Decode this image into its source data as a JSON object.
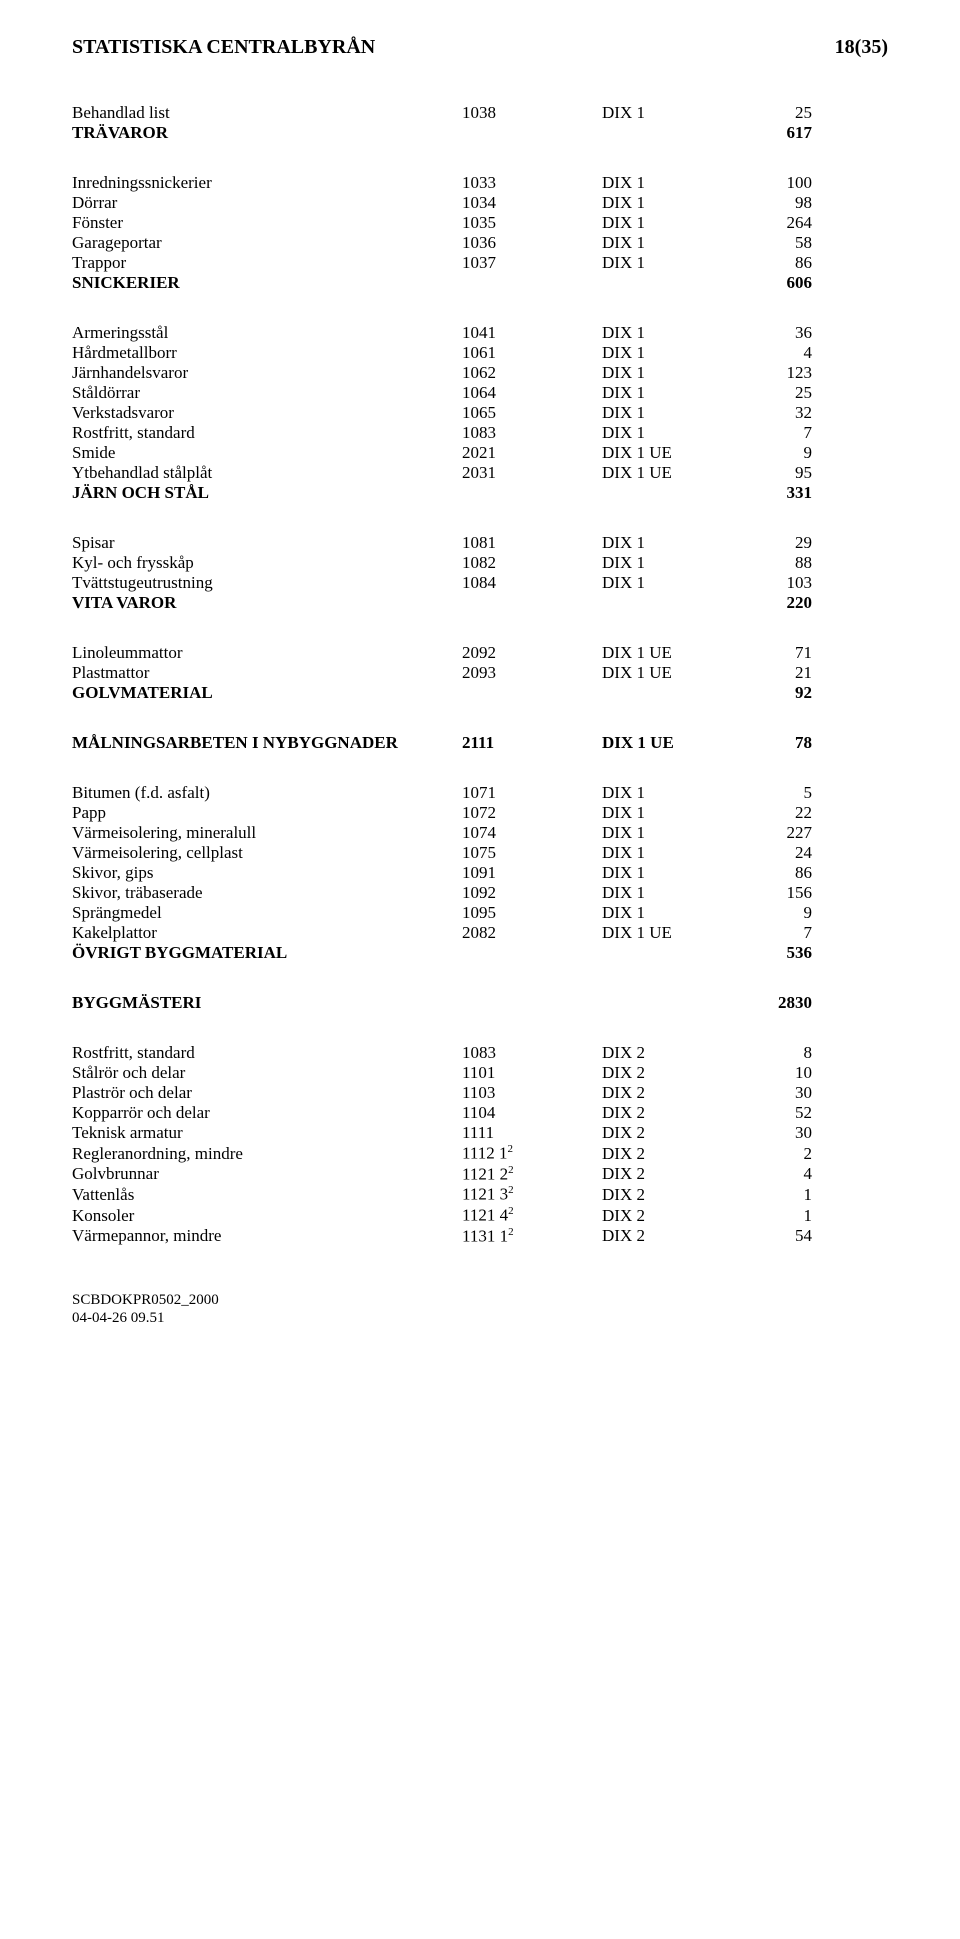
{
  "header": {
    "org": "STATISTISKA CENTRALBYRÅN",
    "pagenum": "18(35)"
  },
  "sections": [
    {
      "rows": [
        {
          "label": "Behandlad list",
          "code": "1038",
          "dix": "DIX 1",
          "val": "25",
          "bold": false
        },
        {
          "label": "TRÄVAROR",
          "code": "",
          "dix": "",
          "val": "617",
          "bold": true
        }
      ]
    },
    {
      "rows": [
        {
          "label": "Inredningssnickerier",
          "code": "1033",
          "dix": "DIX 1",
          "val": "100",
          "bold": false
        },
        {
          "label": "Dörrar",
          "code": "1034",
          "dix": "DIX 1",
          "val": "98",
          "bold": false
        },
        {
          "label": "Fönster",
          "code": "1035",
          "dix": "DIX 1",
          "val": "264",
          "bold": false
        },
        {
          "label": "Garageportar",
          "code": "1036",
          "dix": "DIX 1",
          "val": "58",
          "bold": false
        },
        {
          "label": "Trappor",
          "code": "1037",
          "dix": "DIX 1",
          "val": "86",
          "bold": false
        },
        {
          "label": "SNICKERIER",
          "code": "",
          "dix": "",
          "val": "606",
          "bold": true
        }
      ]
    },
    {
      "rows": [
        {
          "label": "Armeringsstål",
          "code": "1041",
          "dix": "DIX 1",
          "val": "36",
          "bold": false
        },
        {
          "label": "Hårdmetallborr",
          "code": "1061",
          "dix": "DIX 1",
          "val": "4",
          "bold": false
        },
        {
          "label": "Järnhandelsvaror",
          "code": "1062",
          "dix": "DIX 1",
          "val": "123",
          "bold": false
        },
        {
          "label": "Ståldörrar",
          "code": "1064",
          "dix": "DIX 1",
          "val": "25",
          "bold": false
        },
        {
          "label": "Verkstadsvaror",
          "code": "1065",
          "dix": "DIX 1",
          "val": "32",
          "bold": false
        },
        {
          "label": "Rostfritt, standard",
          "code": "1083",
          "dix": "DIX 1",
          "val": "7",
          "bold": false
        },
        {
          "label": "Smide",
          "code": "2021",
          "dix": "DIX 1 UE",
          "val": "9",
          "bold": false
        },
        {
          "label": "Ytbehandlad stålplåt",
          "code": "2031",
          "dix": "DIX 1 UE",
          "val": "95",
          "bold": false
        },
        {
          "label": "JÄRN OCH STÅL",
          "code": "",
          "dix": "",
          "val": "331",
          "bold": true
        }
      ]
    },
    {
      "rows": [
        {
          "label": "Spisar",
          "code": "1081",
          "dix": "DIX 1",
          "val": "29",
          "bold": false
        },
        {
          "label": "Kyl- och frysskåp",
          "code": "1082",
          "dix": "DIX 1",
          "val": "88",
          "bold": false
        },
        {
          "label": "Tvättstugeutrustning",
          "code": "1084",
          "dix": "DIX 1",
          "val": "103",
          "bold": false
        },
        {
          "label": "VITA VAROR",
          "code": "",
          "dix": "",
          "val": "220",
          "bold": true
        }
      ]
    },
    {
      "rows": [
        {
          "label": "Linoleummattor",
          "code": "2092",
          "dix": "DIX 1 UE",
          "val": "71",
          "bold": false
        },
        {
          "label": "Plastmattor",
          "code": "2093",
          "dix": "DIX 1 UE",
          "val": "21",
          "bold": false
        },
        {
          "label": "GOLVMATERIAL",
          "code": "",
          "dix": "",
          "val": "92",
          "bold": true
        }
      ]
    },
    {
      "rows": [
        {
          "label": "MÅLNINGSARBETEN I NYBYGGNADER",
          "code": "2111",
          "dix": "DIX 1 UE",
          "val": "78",
          "bold": true
        }
      ]
    },
    {
      "rows": [
        {
          "label": "Bitumen (f.d. asfalt)",
          "code": "1071",
          "dix": "DIX 1",
          "val": "5",
          "bold": false
        },
        {
          "label": "Papp",
          "code": "1072",
          "dix": "DIX 1",
          "val": "22",
          "bold": false
        },
        {
          "label": "Värmeisolering, mineralull",
          "code": "1074",
          "dix": "DIX 1",
          "val": "227",
          "bold": false
        },
        {
          "label": "Värmeisolering, cellplast",
          "code": "1075",
          "dix": "DIX 1",
          "val": "24",
          "bold": false
        },
        {
          "label": "Skivor, gips",
          "code": "1091",
          "dix": "DIX 1",
          "val": "86",
          "bold": false
        },
        {
          "label": "Skivor, träbaserade",
          "code": "1092",
          "dix": "DIX 1",
          "val": "156",
          "bold": false
        },
        {
          "label": "Sprängmedel",
          "code": "1095",
          "dix": "DIX 1",
          "val": "9",
          "bold": false
        },
        {
          "label": "Kakelplattor",
          "code": "2082",
          "dix": "DIX 1 UE",
          "val": "7",
          "bold": false
        },
        {
          "label": "ÖVRIGT BYGGMATERIAL",
          "code": "",
          "dix": "",
          "val": "536",
          "bold": true
        }
      ]
    },
    {
      "rows": [
        {
          "label": "BYGGMÄSTERI",
          "code": "",
          "dix": "",
          "val": "2830",
          "bold": true
        }
      ]
    },
    {
      "rows": [
        {
          "label": "Rostfritt, standard",
          "code": "1083",
          "dix": "DIX 2",
          "val": "8",
          "bold": false
        },
        {
          "label": "Stålrör och delar",
          "code": "1101",
          "dix": "DIX 2",
          "val": "10",
          "bold": false
        },
        {
          "label": "Plaströr och delar",
          "code": "1103",
          "dix": "DIX 2",
          "val": "30",
          "bold": false
        },
        {
          "label": "Kopparrör och delar",
          "code": "1104",
          "dix": "DIX 2",
          "val": "52",
          "bold": false
        },
        {
          "label": "Teknisk armatur",
          "code": "1111",
          "dix": "DIX 2",
          "val": "30",
          "bold": false
        },
        {
          "label": "Regleranordning, mindre",
          "code": "1112 1",
          "sup": "2",
          "dix": "DIX 2",
          "val": "2",
          "bold": false
        },
        {
          "label": "Golvbrunnar",
          "code": "1121 2",
          "sup": "2",
          "dix": "DIX 2",
          "val": "4",
          "bold": false
        },
        {
          "label": "Vattenlås",
          "code": "1121 3",
          "sup": "2",
          "dix": "DIX 2",
          "val": "1",
          "bold": false
        },
        {
          "label": "Konsoler",
          "code": "1121 4",
          "sup": "2",
          "dix": "DIX 2",
          "val": "1",
          "bold": false
        },
        {
          "label": "Värmepannor, mindre",
          "code": "1131 1",
          "sup": "2",
          "dix": "DIX 2",
          "val": "54",
          "bold": false
        }
      ]
    }
  ],
  "footer": {
    "docref": "SCBDOKPR0502_2000",
    "datetime": "04-04-26 09.51"
  }
}
